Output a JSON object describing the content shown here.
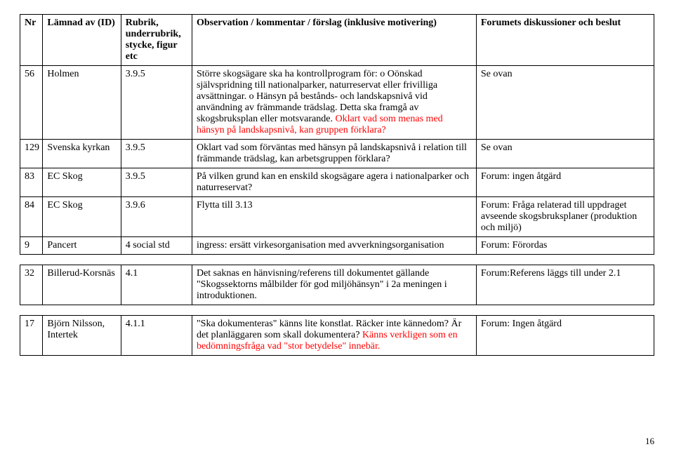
{
  "headers": {
    "nr": "Nr",
    "id": "Lämnad av (ID)",
    "section": "Rubrik, underrubrik, stycke, figur etc",
    "obs": "Observation / kommentar / förslag (inklusive motivering)",
    "forum": "Forumets diskussioner och beslut"
  },
  "rows": [
    {
      "nr": "56",
      "id": "Holmen",
      "section": "3.9.5",
      "obs_black": "Större skogsägare ska ha kontrollprogram för: o Oönskad självspridning till nationalparker, naturreservat eller frivilliga avsättningar. o Hänsyn på bestånds- och landskapsnivå vid användning av främmande trädslag. Detta ska framgå av skogsbruksplan eller motsvarande. ",
      "obs_red": "Oklart vad som menas med hänsyn på landskapsnivå, kan gruppen förklara?",
      "forum": "Se ovan"
    },
    {
      "nr": "129",
      "id": "Svenska kyrkan",
      "section": "3.9.5",
      "obs_black": "Oklart vad som förväntas med hänsyn på landskapsnivå i relation till främmande trädslag, kan arbetsgruppen förklara?",
      "obs_red": "",
      "forum": "Se ovan"
    },
    {
      "nr": "83",
      "id": "EC Skog",
      "section": "3.9.5",
      "obs_black": "På vilken grund kan en enskild skogsägare  agera i nationalparker och naturreservat?",
      "obs_red": "",
      "forum": "Forum: ingen åtgärd"
    },
    {
      "nr": "84",
      "id": "EC Skog",
      "section": "3.9.6",
      "obs_black": "Flytta till 3.13",
      "obs_red": "",
      "forum": "Forum: Fråga relaterad till uppdraget avseende skogsbruksplaner (produktion och miljö)"
    },
    {
      "nr": "9",
      "id": "Pancert",
      "section": "4 social std",
      "obs_black": "ingress: ersätt virkesorganisation med avverkningsorganisation",
      "obs_red": "",
      "forum": "Forum: Förordas"
    },
    {
      "nr": "32",
      "id": "Billerud-Korsnäs",
      "section": "4.1",
      "obs_black": "Det saknas en hänvisning/referens till dokumentet gällande \"Skogssektorns målbilder för god miljöhänsyn\" i 2a meningen i introduktionen.",
      "obs_red": "",
      "forum": "Forum:Referens läggs till under 2.1"
    },
    {
      "nr": "17",
      "id": "Björn Nilsson, Intertek",
      "section": "4.1.1",
      "obs_black": "\"Ska dokumenteras\" känns lite konstlat. Räcker inte kännedom? Är det planläggaren som skall dokumentera? ",
      "obs_red": "Känns verkligen som en bedömningsfråga vad \"stor betydelse\" innebär.",
      "forum": "Forum: Ingen åtgärd"
    }
  ],
  "page_number": "16"
}
